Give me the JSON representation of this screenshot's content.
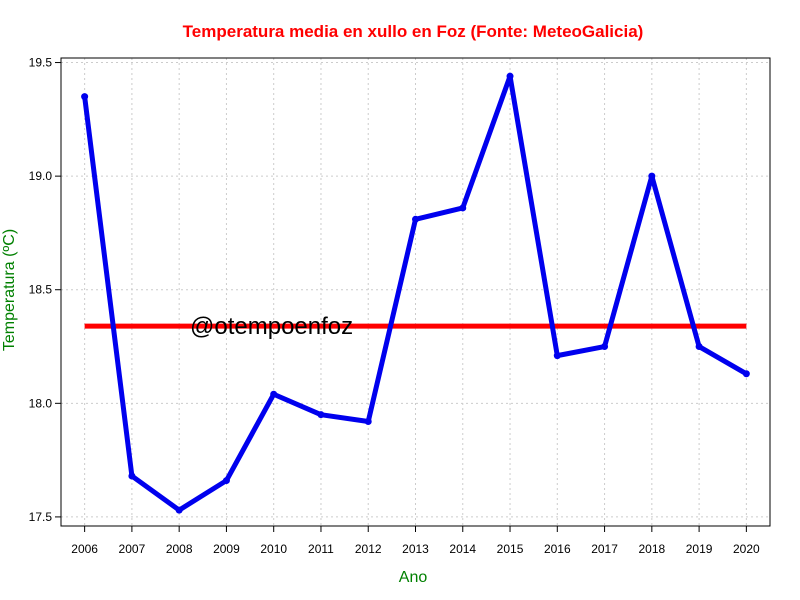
{
  "chart_data": {
    "type": "line",
    "title": "Temperatura media en xullo en Foz (Fonte: MeteoGalicia)",
    "xlabel": "Ano",
    "ylabel": "Temperatura (ºC)",
    "watermark": "@otempoenfoz",
    "x": [
      2006,
      2007,
      2008,
      2009,
      2010,
      2011,
      2012,
      2013,
      2014,
      2015,
      2016,
      2017,
      2018,
      2019,
      2020
    ],
    "x_tick_labels": [
      "2006",
      "2007",
      "2008",
      "2009",
      "2010",
      "2011",
      "2012",
      "2013",
      "2014",
      "2015",
      "2016",
      "2017",
      "2018",
      "2019",
      "2020"
    ],
    "series": [
      {
        "values": [
          19.35,
          17.68,
          17.53,
          17.66,
          18.04,
          17.95,
          17.92,
          18.81,
          18.86,
          19.44,
          18.21,
          18.25,
          19.0,
          18.25,
          18.13
        ],
        "color": "#0000ee"
      }
    ],
    "reference_line": {
      "value": 18.34,
      "color": "#ff0000"
    },
    "yticks": [
      17.5,
      18.0,
      18.5,
      19.0,
      19.5
    ],
    "ytick_labels": [
      "17.5",
      "18.0",
      "18.5",
      "19.0",
      "19.5"
    ],
    "xlim": [
      2005.5,
      2020.5
    ],
    "ylim": [
      17.46,
      19.52
    ],
    "grid": true,
    "colors": {
      "title": "#ff0000",
      "axis_labels": "#008000",
      "grid": "#cccccc"
    }
  }
}
